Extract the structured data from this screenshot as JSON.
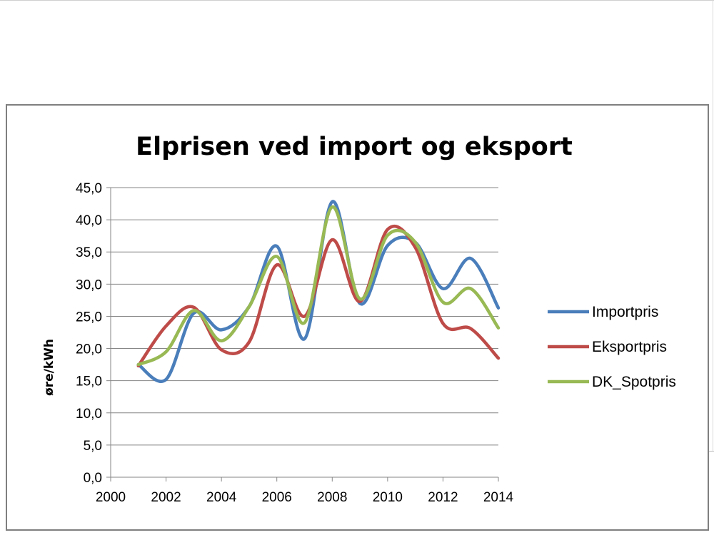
{
  "chart_data": {
    "type": "line",
    "title": "Elprisen ved import og eksport",
    "xlabel": "",
    "ylabel": "øre/kWh",
    "x": [
      2001,
      2002,
      2003,
      2004,
      2005,
      2006,
      2007,
      2008,
      2009,
      2010,
      2011,
      2012,
      2013,
      2014
    ],
    "xlim": [
      2000,
      2014
    ],
    "ylim": [
      0,
      45
    ],
    "x_ticks": [
      2000,
      2002,
      2004,
      2006,
      2008,
      2010,
      2012,
      2014
    ],
    "x_tick_labels": [
      "2000",
      "2002",
      "2004",
      "2006",
      "2008",
      "2010",
      "2012",
      "2014"
    ],
    "y_ticks": [
      0,
      5,
      10,
      15,
      20,
      25,
      30,
      35,
      40,
      45
    ],
    "y_tick_labels": [
      "0,0",
      "5,0",
      "10,0",
      "15,0",
      "20,0",
      "25,0",
      "30,0",
      "35,0",
      "40,0",
      "45,0"
    ],
    "grid": "horizontal",
    "legend_position": "right",
    "series": [
      {
        "name": "Importpris",
        "color": "#4a7ebb",
        "values": [
          17.5,
          15.2,
          25.5,
          22.9,
          26.5,
          35.9,
          21.5,
          42.8,
          27.0,
          36.0,
          36.5,
          29.3,
          34.0,
          26.3
        ]
      },
      {
        "name": "Eksportpris",
        "color": "#be4b48",
        "values": [
          17.3,
          23.5,
          26.4,
          19.8,
          21.0,
          33.0,
          25.0,
          36.9,
          27.3,
          38.5,
          35.7,
          23.9,
          23.1,
          18.5
        ]
      },
      {
        "name": "DK_Spotpris",
        "color": "#98b954",
        "values": [
          17.5,
          19.5,
          25.9,
          21.2,
          26.5,
          34.3,
          24.0,
          42.0,
          27.7,
          37.6,
          36.5,
          27.2,
          29.3,
          23.2
        ]
      }
    ]
  }
}
